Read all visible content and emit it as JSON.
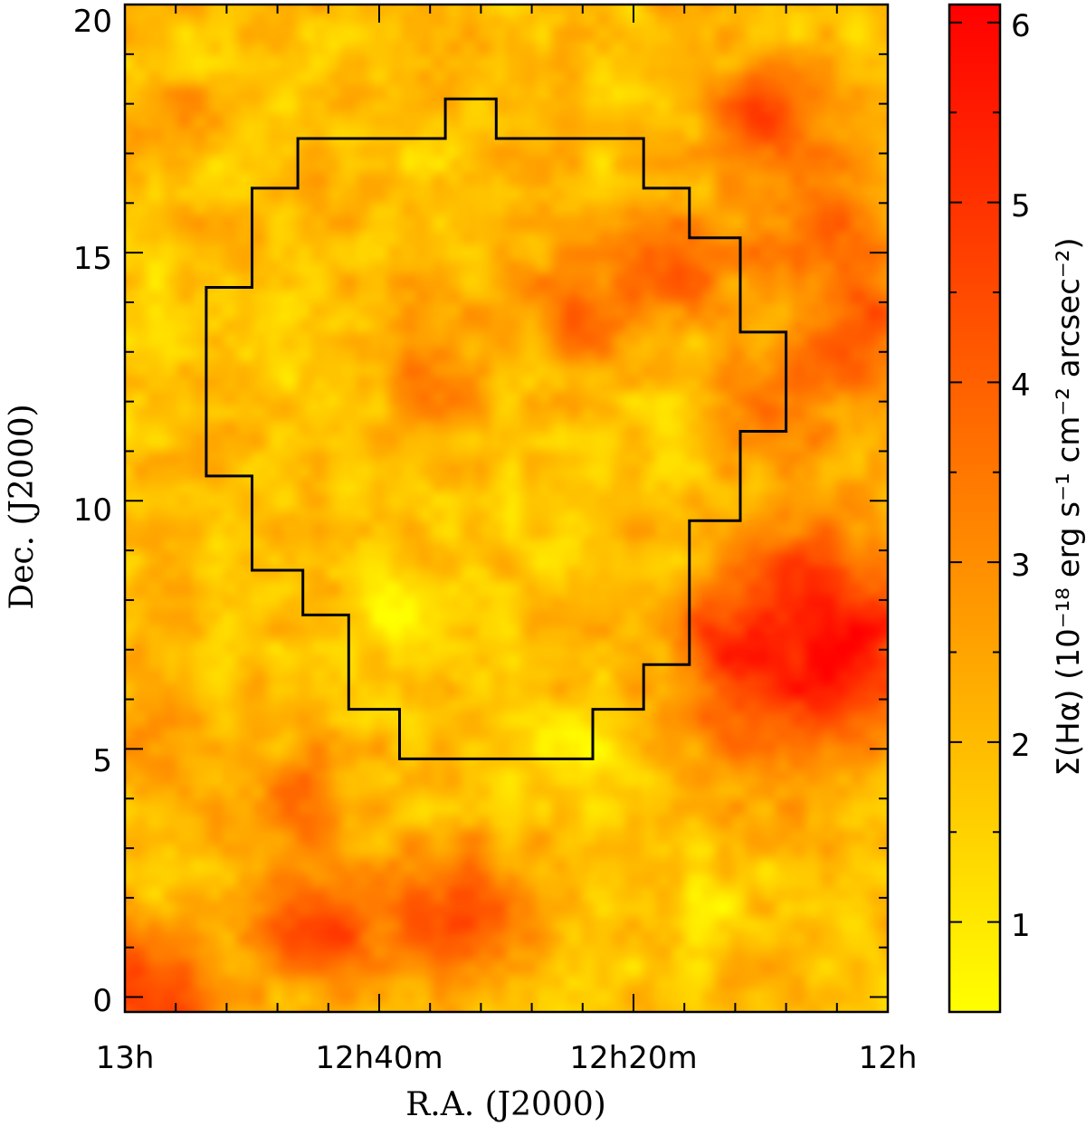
{
  "chart_data": {
    "type": "heatmap",
    "title": "",
    "xlabel": "R.A. (J2000)",
    "ylabel": "Dec. (J2000)",
    "x_ticks": [
      {
        "value": 195,
        "label": "13h"
      },
      {
        "value": 190,
        "label": "12h40m"
      },
      {
        "value": 185,
        "label": "12h20m"
      },
      {
        "value": 180,
        "label": "12h"
      }
    ],
    "x_range_deg": [
      195,
      180
    ],
    "y_ticks": [
      {
        "value": 0,
        "label": "0"
      },
      {
        "value": 5,
        "label": "5"
      },
      {
        "value": 10,
        "label": "10"
      },
      {
        "value": 15,
        "label": "15"
      },
      {
        "value": 20,
        "label": "20"
      }
    ],
    "y_range_deg": [
      -0.3,
      20
    ],
    "colorbar": {
      "label": "Σ(Hα) (10⁻¹⁸ erg s⁻¹ cm⁻² arcsec⁻²)",
      "range": [
        0.5,
        6.1
      ],
      "ticks": [
        1,
        2,
        3,
        4,
        5,
        6
      ],
      "colors": [
        "#ffff00",
        "#ff8000",
        "#ff0000"
      ]
    },
    "field_background": 1.9,
    "emission_blobs": [
      {
        "ra": 194.6,
        "dec": -0.1,
        "val": 5.0,
        "sigma": 0.9
      },
      {
        "ra": 191.2,
        "dec": 1.4,
        "val": 4.5,
        "sigma": 0.8
      },
      {
        "ra": 188.5,
        "dec": 1.6,
        "val": 4.8,
        "sigma": 0.9
      },
      {
        "ra": 191.5,
        "dec": 3.8,
        "val": 3.5,
        "sigma": 0.8
      },
      {
        "ra": 194.4,
        "dec": 5.0,
        "val": 3.2,
        "sigma": 0.8
      },
      {
        "ra": 181.5,
        "dec": 8.0,
        "val": 4.6,
        "sigma": 1.3
      },
      {
        "ra": 180.6,
        "dec": 6.5,
        "val": 4.4,
        "sigma": 1.1
      },
      {
        "ra": 182.8,
        "dec": 5.8,
        "val": 3.8,
        "sigma": 1.0
      },
      {
        "ra": 182.5,
        "dec": 17.8,
        "val": 4.6,
        "sigma": 0.7
      },
      {
        "ra": 181.2,
        "dec": 15.5,
        "val": 3.8,
        "sigma": 1.0
      },
      {
        "ra": 180.4,
        "dec": 13.5,
        "val": 4.2,
        "sigma": 0.8
      },
      {
        "ra": 184.0,
        "dec": 14.8,
        "val": 3.9,
        "sigma": 0.8
      },
      {
        "ra": 186.0,
        "dec": 13.8,
        "val": 3.6,
        "sigma": 0.8
      },
      {
        "ra": 182.0,
        "dec": 12.0,
        "val": 3.6,
        "sigma": 0.8
      },
      {
        "ra": 183.4,
        "dec": 7.3,
        "val": 3.7,
        "sigma": 0.6
      },
      {
        "ra": 189.0,
        "dec": 12.5,
        "val": 3.0,
        "sigma": 0.9
      },
      {
        "ra": 193.8,
        "dec": 17.3,
        "val": 3.1,
        "sigma": 0.7
      },
      {
        "ra": 193.3,
        "dec": 16.7,
        "val": 0.9,
        "sigma": 0.5
      },
      {
        "ra": 194.2,
        "dec": 13.5,
        "val": 1.2,
        "sigma": 0.6
      },
      {
        "ra": 191.0,
        "dec": 13.0,
        "val": 1.2,
        "sigma": 0.7
      },
      {
        "ra": 189.4,
        "dec": 7.8,
        "val": 0.8,
        "sigma": 0.7
      },
      {
        "ra": 186.0,
        "dec": 4.8,
        "val": 1.0,
        "sigma": 0.8
      },
      {
        "ra": 186.6,
        "dec": 10.0,
        "val": 1.4,
        "sigma": 0.9
      },
      {
        "ra": 184.2,
        "dec": 11.8,
        "val": 1.3,
        "sigma": 0.5
      },
      {
        "ra": 183.5,
        "dec": 1.8,
        "val": 1.3,
        "sigma": 0.7
      }
    ],
    "footprint_outline": [
      [
        191.6,
        17.3
      ],
      [
        188.7,
        17.3
      ],
      [
        188.7,
        18.1
      ],
      [
        187.7,
        18.1
      ],
      [
        187.7,
        17.3
      ],
      [
        184.8,
        17.3
      ],
      [
        184.8,
        16.3
      ],
      [
        183.9,
        16.3
      ],
      [
        183.9,
        15.3
      ],
      [
        182.9,
        15.3
      ],
      [
        182.9,
        13.4
      ],
      [
        182.0,
        13.4
      ],
      [
        182.0,
        11.4
      ],
      [
        182.9,
        11.4
      ],
      [
        182.9,
        9.6
      ],
      [
        183.9,
        9.6
      ],
      [
        183.9,
        6.7
      ],
      [
        184.8,
        6.7
      ],
      [
        184.8,
        5.8
      ],
      [
        185.8,
        5.8
      ],
      [
        185.8,
        4.8
      ],
      [
        189.6,
        4.8
      ],
      [
        189.6,
        5.8
      ],
      [
        190.6,
        5.8
      ],
      [
        190.6,
        7.7
      ],
      [
        191.5,
        7.7
      ],
      [
        191.5,
        8.6
      ],
      [
        192.5,
        8.6
      ],
      [
        192.5,
        10.5
      ],
      [
        193.4,
        10.5
      ],
      [
        193.4,
        14.3
      ],
      [
        192.5,
        14.3
      ],
      [
        192.5,
        16.3
      ],
      [
        191.6,
        16.3
      ],
      [
        191.6,
        17.3
      ]
    ]
  }
}
